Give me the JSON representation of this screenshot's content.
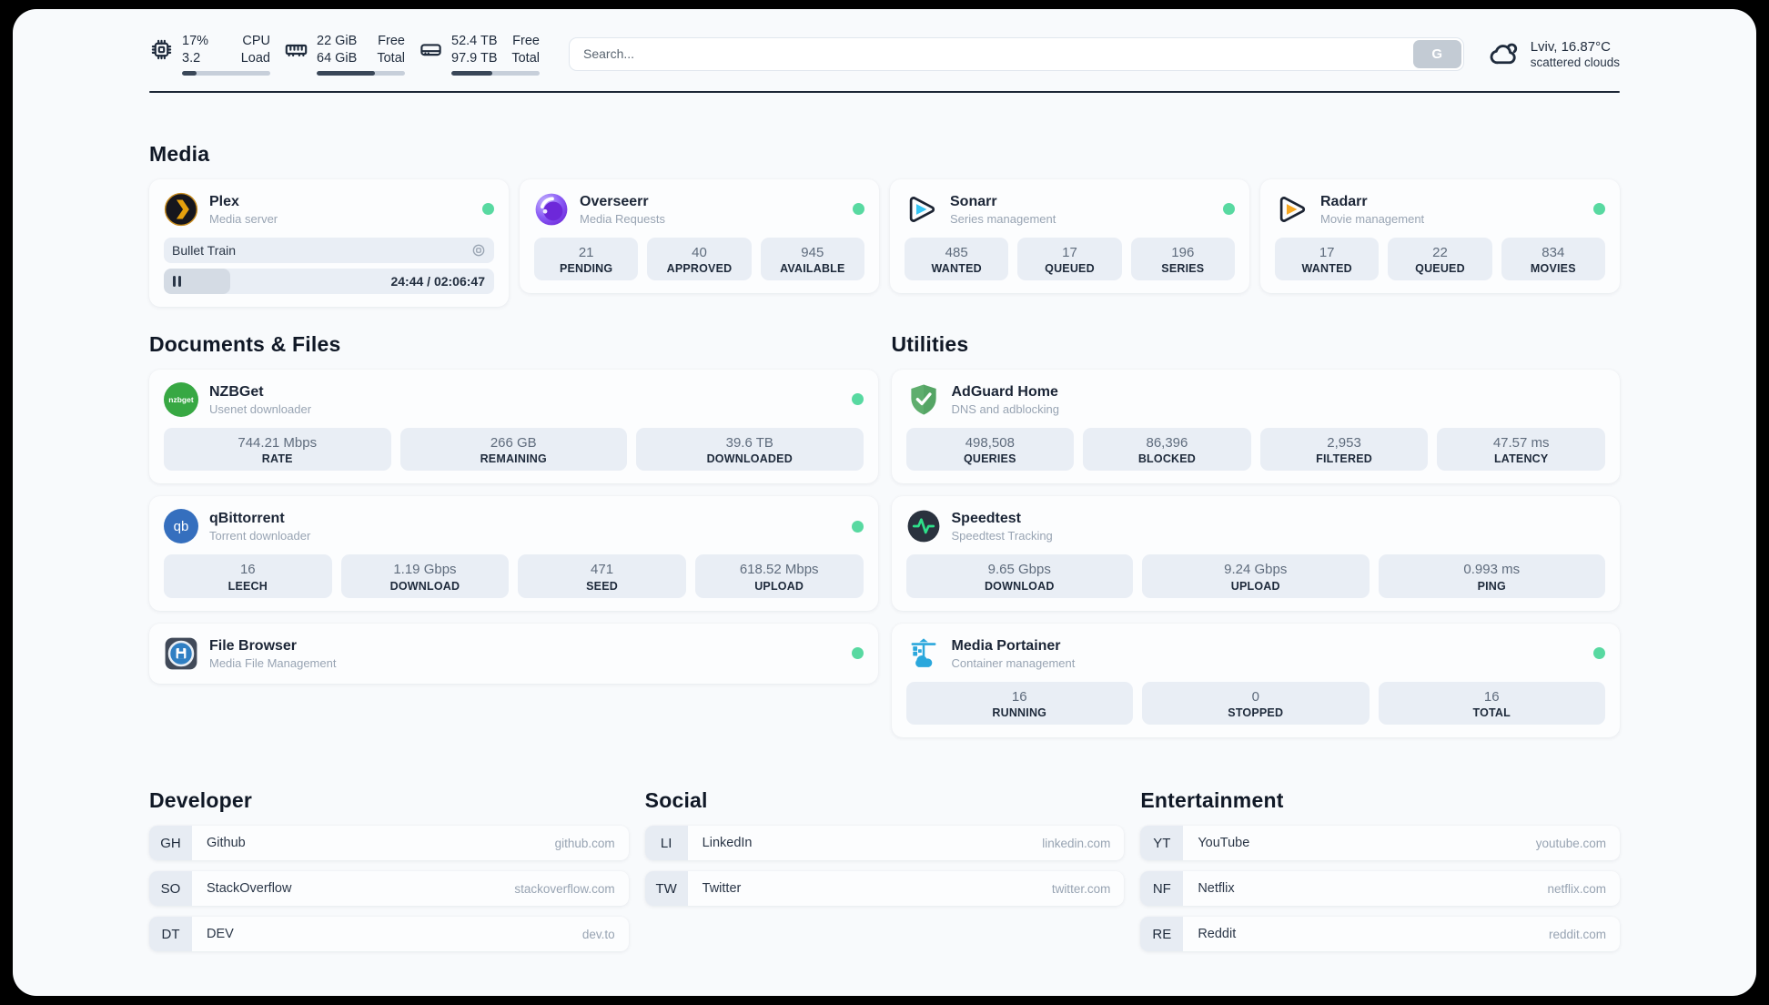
{
  "system_stats": {
    "cpu": {
      "line1_value": "17%",
      "line2_value": "3.2",
      "line1_label": "CPU",
      "line2_label": "Load",
      "progress_pct": 17
    },
    "memory": {
      "line1_value": "22 GiB",
      "line2_value": "64 GiB",
      "line1_label": "Free",
      "line2_label": "Total",
      "progress_pct": 66
    },
    "storage": {
      "line1_value": "52.4 TB",
      "line2_value": "97.9 TB",
      "line1_label": "Free",
      "line2_label": "Total",
      "progress_pct": 46
    }
  },
  "search": {
    "placeholder": "Search...",
    "button_label": "G"
  },
  "weather": {
    "location_temp": "Lviv, 16.87°C",
    "condition": "scattered clouds"
  },
  "sections": {
    "media": "Media",
    "documents": "Documents & Files",
    "utilities": "Utilities",
    "developer": "Developer",
    "social": "Social",
    "entertainment": "Entertainment"
  },
  "apps": {
    "plex": {
      "name": "Plex",
      "subtitle": "Media server",
      "status": "online",
      "now_playing": "Bullet Train",
      "time": "24:44 / 02:06:47",
      "progress_pct": 20
    },
    "overseerr": {
      "name": "Overseerr",
      "subtitle": "Media Requests",
      "status": "online",
      "stats": [
        {
          "value": "21",
          "label": "PENDING"
        },
        {
          "value": "40",
          "label": "APPROVED"
        },
        {
          "value": "945",
          "label": "AVAILABLE"
        }
      ]
    },
    "sonarr": {
      "name": "Sonarr",
      "subtitle": "Series management",
      "status": "online",
      "stats": [
        {
          "value": "485",
          "label": "WANTED"
        },
        {
          "value": "17",
          "label": "QUEUED"
        },
        {
          "value": "196",
          "label": "SERIES"
        }
      ]
    },
    "radarr": {
      "name": "Radarr",
      "subtitle": "Movie management",
      "status": "online",
      "stats": [
        {
          "value": "17",
          "label": "WANTED"
        },
        {
          "value": "22",
          "label": "QUEUED"
        },
        {
          "value": "834",
          "label": "MOVIES"
        }
      ]
    },
    "nzbget": {
      "name": "NZBGet",
      "subtitle": "Usenet downloader",
      "status": "online",
      "logo_text": "nzbget",
      "stats": [
        {
          "value": "744.21 Mbps",
          "label": "RATE"
        },
        {
          "value": "266 GB",
          "label": "REMAINING"
        },
        {
          "value": "39.6 TB",
          "label": "DOWNLOADED"
        }
      ]
    },
    "qbittorrent": {
      "name": "qBittorrent",
      "subtitle": "Torrent downloader",
      "status": "online",
      "logo_text": "qb",
      "stats": [
        {
          "value": "16",
          "label": "LEECH"
        },
        {
          "value": "1.19 Gbps",
          "label": "DOWNLOAD"
        },
        {
          "value": "471",
          "label": "SEED"
        },
        {
          "value": "618.52 Mbps",
          "label": "UPLOAD"
        }
      ]
    },
    "filebrowser": {
      "name": "File Browser",
      "subtitle": "Media File Management",
      "status": "online"
    },
    "adguard": {
      "name": "AdGuard Home",
      "subtitle": "DNS and adblocking",
      "stats": [
        {
          "value": "498,508",
          "label": "QUERIES"
        },
        {
          "value": "86,396",
          "label": "BLOCKED"
        },
        {
          "value": "2,953",
          "label": "FILTERED"
        },
        {
          "value": "47.57 ms",
          "label": "LATENCY"
        }
      ]
    },
    "speedtest": {
      "name": "Speedtest",
      "subtitle": "Speedtest Tracking",
      "stats": [
        {
          "value": "9.65 Gbps",
          "label": "DOWNLOAD"
        },
        {
          "value": "9.24 Gbps",
          "label": "UPLOAD"
        },
        {
          "value": "0.993 ms",
          "label": "PING"
        }
      ]
    },
    "portainer": {
      "name": "Media Portainer",
      "subtitle": "Container management",
      "status": "online",
      "stats": [
        {
          "value": "16",
          "label": "RUNNING"
        },
        {
          "value": "0",
          "label": "STOPPED"
        },
        {
          "value": "16",
          "label": "TOTAL"
        }
      ]
    }
  },
  "bookmarks": {
    "developer": [
      {
        "abbr": "GH",
        "name": "Github",
        "url": "github.com"
      },
      {
        "abbr": "SO",
        "name": "StackOverflow",
        "url": "stackoverflow.com"
      },
      {
        "abbr": "DT",
        "name": "DEV",
        "url": "dev.to"
      }
    ],
    "social": [
      {
        "abbr": "LI",
        "name": "LinkedIn",
        "url": "linkedin.com"
      },
      {
        "abbr": "TW",
        "name": "Twitter",
        "url": "twitter.com"
      }
    ],
    "entertainment": [
      {
        "abbr": "YT",
        "name": "YouTube",
        "url": "youtube.com"
      },
      {
        "abbr": "NF",
        "name": "Netflix",
        "url": "netflix.com"
      },
      {
        "abbr": "RE",
        "name": "Reddit",
        "url": "reddit.com"
      }
    ]
  },
  "colors": {
    "status_online": "#58d9a1",
    "plex_yellow": "#e5a00d",
    "sonarr_blue": "#35c5f4",
    "radarr_orange": "#f7a823",
    "nzbget_green": "#37a843",
    "qbittorrent_blue": "#356fbe",
    "adguard_green": "#5fae6e",
    "speedtest_pulse": "#2ee08a",
    "portainer_blue": "#2aa7dc",
    "divider_navy": "#1d2736"
  }
}
